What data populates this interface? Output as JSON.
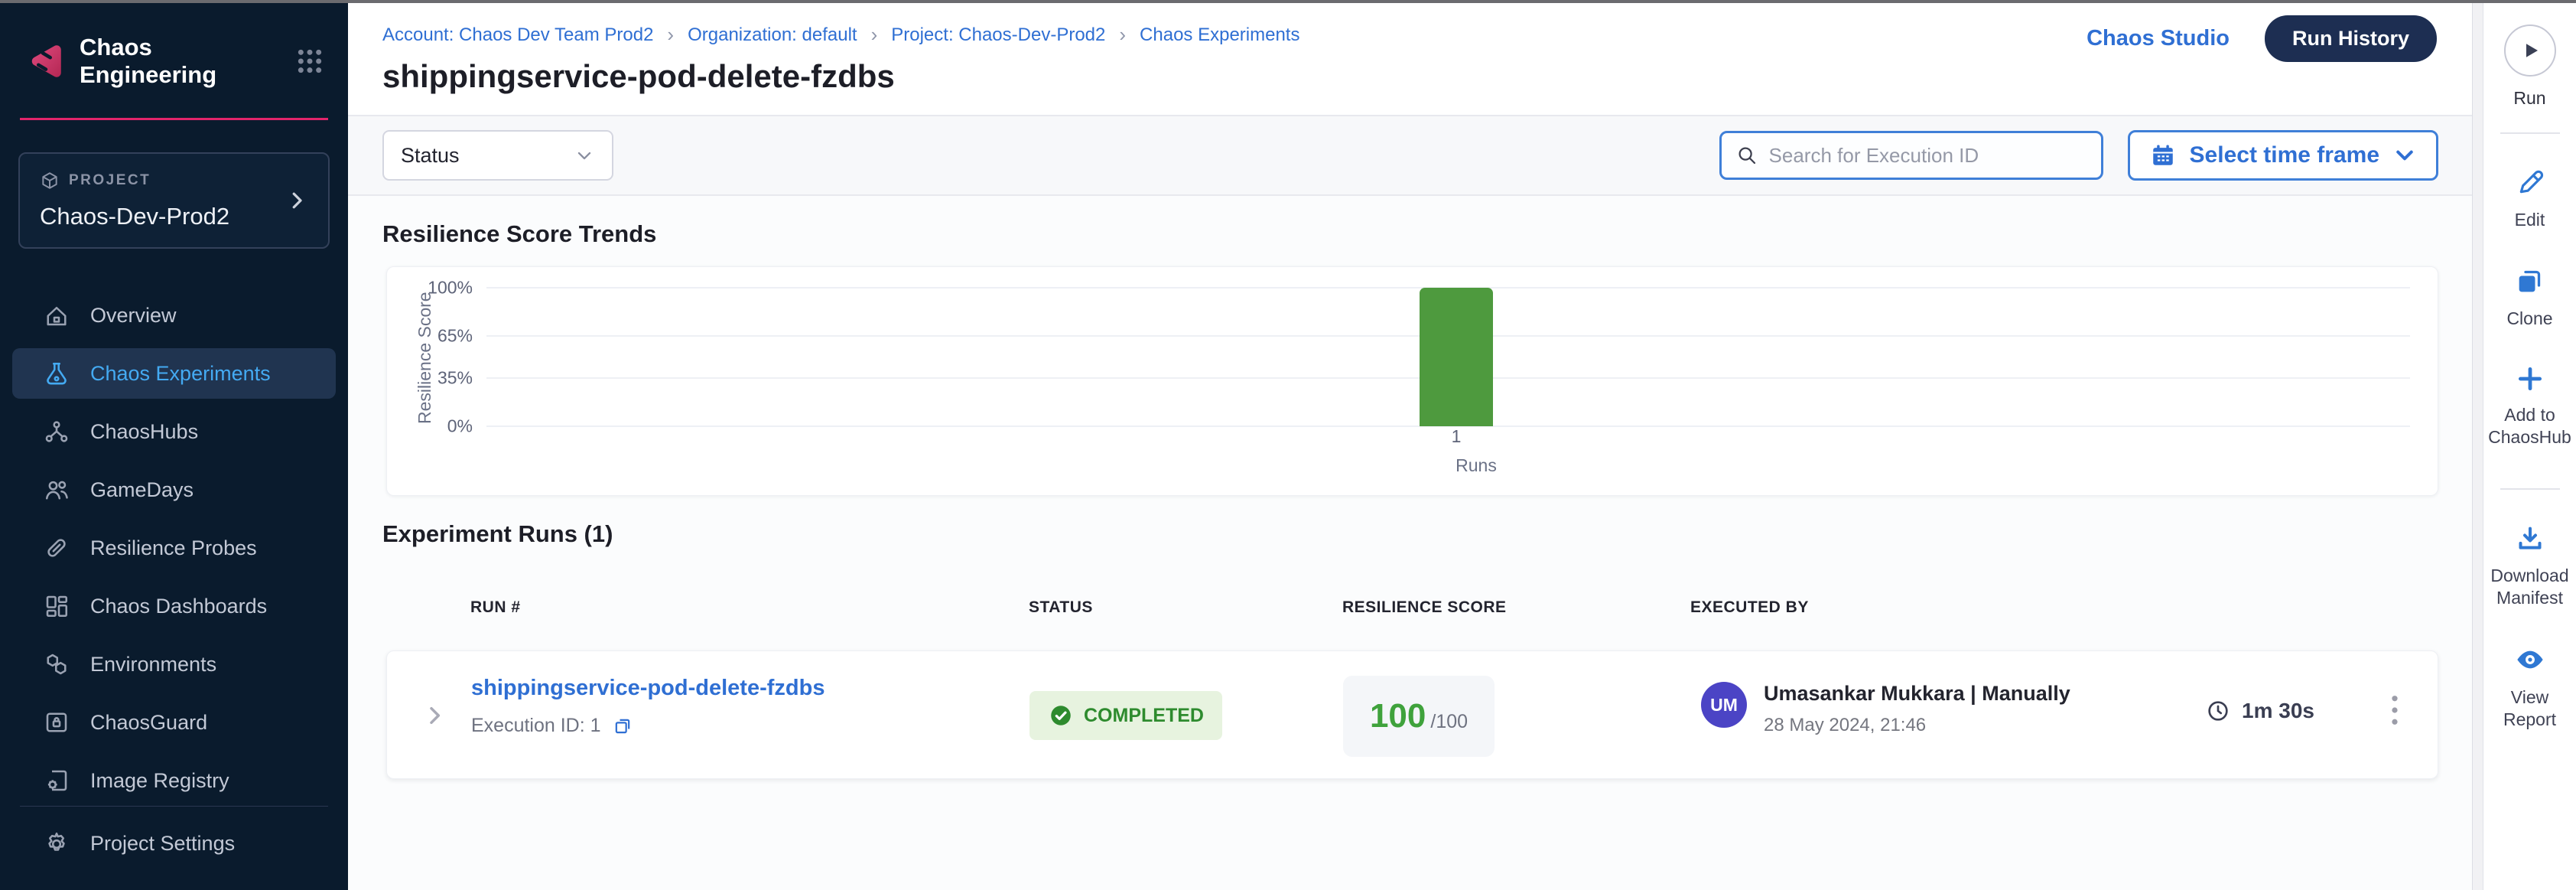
{
  "sidebar": {
    "app_title": "Chaos Engineering",
    "project_label": "PROJECT",
    "project_name": "Chaos-Dev-Prod2",
    "nav": [
      {
        "label": "Overview"
      },
      {
        "label": "Chaos Experiments"
      },
      {
        "label": "ChaosHubs"
      },
      {
        "label": "GameDays"
      },
      {
        "label": "Resilience Probes"
      },
      {
        "label": "Chaos Dashboards"
      },
      {
        "label": "Environments"
      },
      {
        "label": "ChaosGuard"
      },
      {
        "label": "Image Registry"
      }
    ],
    "settings_label": "Project Settings"
  },
  "header": {
    "breadcrumb": [
      "Account: Chaos Dev Team Prod2",
      "Organization: default",
      "Project: Chaos-Dev-Prod2",
      "Chaos Experiments"
    ],
    "page_title": "shippingservice-pod-delete-fzdbs",
    "chaos_studio_label": "Chaos Studio",
    "run_history_label": "Run History"
  },
  "filters": {
    "status_label": "Status",
    "search_placeholder": "Search for Execution ID",
    "time_frame_label": "Select time frame"
  },
  "chart_data": {
    "type": "bar",
    "title": "Resilience Score Trends",
    "ylabel": "Resilience Score",
    "xlabel": "Runs",
    "categories": [
      "1"
    ],
    "values": [
      100
    ],
    "ylim": [
      0,
      100
    ],
    "yticks": [
      0,
      35,
      65,
      100
    ],
    "ytick_labels": [
      "0%",
      "35%",
      "65%",
      "100%"
    ],
    "grid": true,
    "legend": "none",
    "bar_color": "#4E9A3E"
  },
  "runs_section": {
    "title": "Experiment Runs (1)",
    "columns": [
      "RUN #",
      "STATUS",
      "RESILIENCE SCORE",
      "EXECUTED BY"
    ],
    "rows": [
      {
        "run_name": "shippingservice-pod-delete-fzdbs",
        "execution_id_label": "Execution ID: 1",
        "status": "COMPLETED",
        "score": "100",
        "score_total": "/100",
        "avatar_initials": "UM",
        "executed_by": "Umasankar Mukkara | Manually",
        "executed_at": "28 May 2024, 21:46",
        "duration": "1m 30s"
      }
    ]
  },
  "right_rail": {
    "run_label": "Run",
    "edit_label": "Edit",
    "clone_label": "Clone",
    "add_label": "Add to ChaosHub",
    "download_label": "Download Manifest",
    "view_report_label": "View Report"
  },
  "colors": {
    "sidebar_navy": "#0a1b2d",
    "brand_pink": "#e2256b",
    "nav_active_blue": "#44aaf2",
    "link_blue": "#2f6fd3",
    "run_history_navy": "#1d2e52",
    "bar_green": "#4E9A3E",
    "status_green_text": "#2e8b2e",
    "status_green_bg": "#e7f3df",
    "avatar_indigo": "#4b44c5"
  }
}
